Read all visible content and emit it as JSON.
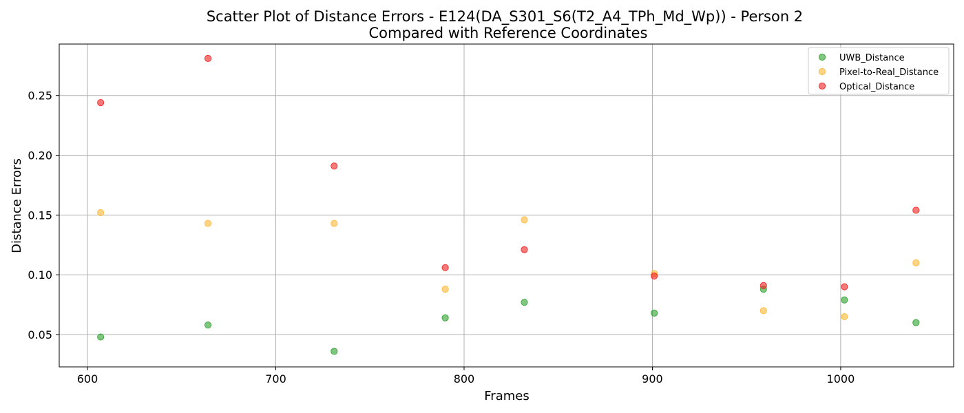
{
  "chart_data": {
    "type": "scatter",
    "title": "Scatter Plot of Distance Errors - E124(DA_S301_S6(T2_A4_TPh_Md_Wp)) - Person 2",
    "subtitle": "Compared with Reference Coordinates",
    "xlabel": "Frames",
    "ylabel": "Distance Errors",
    "xlim": [
      585,
      1060
    ],
    "ylim": [
      0.023,
      0.293
    ],
    "xticks": [
      600,
      700,
      800,
      900,
      1000
    ],
    "yticks": [
      0.05,
      0.1,
      0.15,
      0.2,
      0.25
    ],
    "xtick_labels": [
      "600",
      "700",
      "800",
      "900",
      "1000"
    ],
    "ytick_labels": [
      "0.05",
      "0.10",
      "0.15",
      "0.20",
      "0.25"
    ],
    "grid": true,
    "legend_position": "top-right",
    "series": [
      {
        "name": "UWB_Distance",
        "color": "#2ca02c",
        "points": [
          {
            "x": 607,
            "y": 0.048
          },
          {
            "x": 664,
            "y": 0.058
          },
          {
            "x": 731,
            "y": 0.036
          },
          {
            "x": 790,
            "y": 0.064
          },
          {
            "x": 832,
            "y": 0.077
          },
          {
            "x": 901,
            "y": 0.068
          },
          {
            "x": 959,
            "y": 0.088
          },
          {
            "x": 1002,
            "y": 0.079
          },
          {
            "x": 1040,
            "y": 0.06
          }
        ]
      },
      {
        "name": "Pixel-to-Real_Distance",
        "color": "#ffb733",
        "points": [
          {
            "x": 607,
            "y": 0.152
          },
          {
            "x": 664,
            "y": 0.143
          },
          {
            "x": 731,
            "y": 0.143
          },
          {
            "x": 790,
            "y": 0.088
          },
          {
            "x": 832,
            "y": 0.146
          },
          {
            "x": 901,
            "y": 0.101
          },
          {
            "x": 959,
            "y": 0.07
          },
          {
            "x": 1002,
            "y": 0.065
          },
          {
            "x": 1040,
            "y": 0.11
          }
        ]
      },
      {
        "name": "Optical_Distance",
        "color": "#f02020",
        "points": [
          {
            "x": 607,
            "y": 0.244
          },
          {
            "x": 664,
            "y": 0.281
          },
          {
            "x": 731,
            "y": 0.191
          },
          {
            "x": 790,
            "y": 0.106
          },
          {
            "x": 832,
            "y": 0.121
          },
          {
            "x": 901,
            "y": 0.099
          },
          {
            "x": 959,
            "y": 0.091
          },
          {
            "x": 1002,
            "y": 0.09
          },
          {
            "x": 1040,
            "y": 0.154
          }
        ]
      }
    ]
  }
}
